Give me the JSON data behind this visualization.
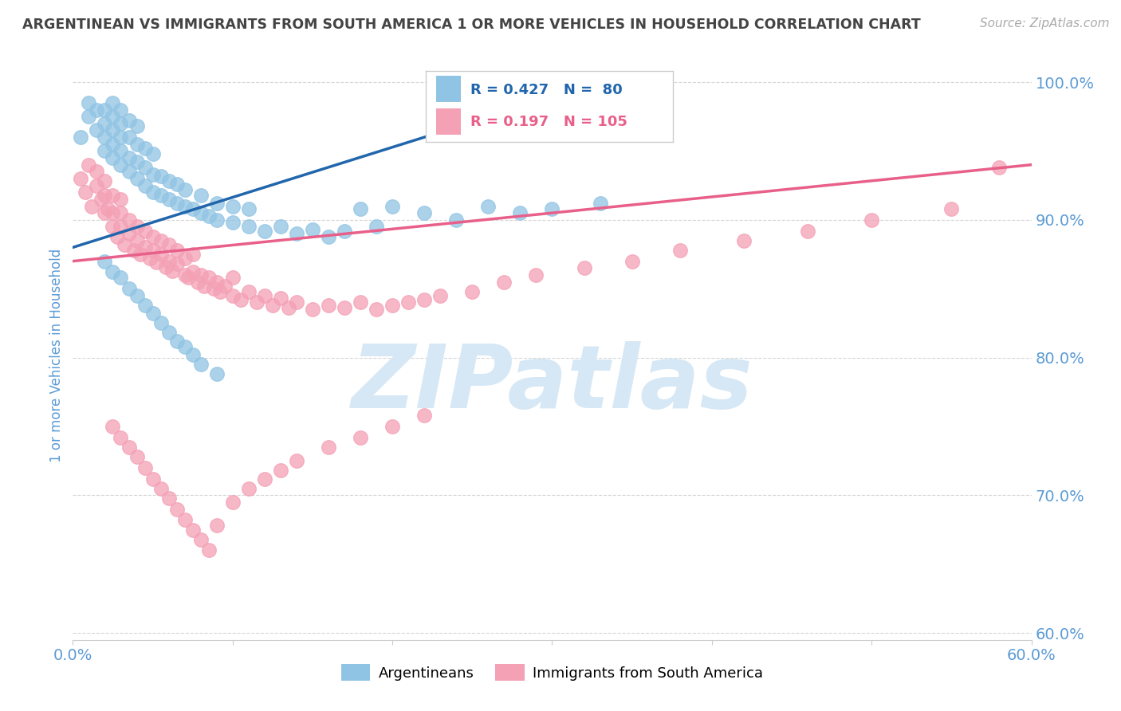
{
  "title": "ARGENTINEAN VS IMMIGRANTS FROM SOUTH AMERICA 1 OR MORE VEHICLES IN HOUSEHOLD CORRELATION CHART",
  "source": "Source: ZipAtlas.com",
  "ylabel": "1 or more Vehicles in Household",
  "xlim": [
    0.0,
    0.6
  ],
  "ylim": [
    0.595,
    1.008
  ],
  "yticks": [
    0.6,
    0.7,
    0.8,
    0.9,
    1.0
  ],
  "ytick_labels": [
    "60.0%",
    "70.0%",
    "80.0%",
    "90.0%",
    "100.0%"
  ],
  "blue_color": "#90c4e4",
  "pink_color": "#f4a0b5",
  "blue_line_color": "#2166ac",
  "pink_line_color": "#e8608a",
  "tick_label_color": "#5b9bd5",
  "axis_label_color": "#5b9bd5",
  "watermark_color": "#d6e8f5",
  "blue_scatter_x": [
    0.005,
    0.01,
    0.01,
    0.015,
    0.015,
    0.02,
    0.02,
    0.02,
    0.02,
    0.025,
    0.025,
    0.025,
    0.025,
    0.025,
    0.03,
    0.03,
    0.03,
    0.03,
    0.03,
    0.035,
    0.035,
    0.035,
    0.035,
    0.04,
    0.04,
    0.04,
    0.04,
    0.045,
    0.045,
    0.045,
    0.05,
    0.05,
    0.05,
    0.055,
    0.055,
    0.06,
    0.06,
    0.065,
    0.065,
    0.07,
    0.07,
    0.075,
    0.08,
    0.08,
    0.085,
    0.09,
    0.09,
    0.1,
    0.1,
    0.11,
    0.11,
    0.12,
    0.13,
    0.14,
    0.15,
    0.16,
    0.17,
    0.18,
    0.19,
    0.2,
    0.22,
    0.24,
    0.26,
    0.28,
    0.3,
    0.33,
    0.02,
    0.025,
    0.03,
    0.035,
    0.04,
    0.045,
    0.05,
    0.055,
    0.06,
    0.065,
    0.07,
    0.075,
    0.08,
    0.09
  ],
  "blue_scatter_y": [
    0.96,
    0.975,
    0.985,
    0.965,
    0.98,
    0.95,
    0.96,
    0.97,
    0.98,
    0.945,
    0.955,
    0.965,
    0.975,
    0.985,
    0.94,
    0.95,
    0.96,
    0.97,
    0.98,
    0.935,
    0.945,
    0.96,
    0.972,
    0.93,
    0.942,
    0.955,
    0.968,
    0.925,
    0.938,
    0.952,
    0.92,
    0.933,
    0.948,
    0.918,
    0.932,
    0.915,
    0.928,
    0.912,
    0.926,
    0.91,
    0.922,
    0.908,
    0.905,
    0.918,
    0.903,
    0.9,
    0.912,
    0.898,
    0.91,
    0.895,
    0.908,
    0.892,
    0.895,
    0.89,
    0.893,
    0.888,
    0.892,
    0.908,
    0.895,
    0.91,
    0.905,
    0.9,
    0.91,
    0.905,
    0.908,
    0.912,
    0.87,
    0.862,
    0.858,
    0.85,
    0.845,
    0.838,
    0.832,
    0.825,
    0.818,
    0.812,
    0.808,
    0.802,
    0.795,
    0.788
  ],
  "pink_scatter_x": [
    0.005,
    0.008,
    0.01,
    0.012,
    0.015,
    0.015,
    0.018,
    0.02,
    0.02,
    0.02,
    0.022,
    0.025,
    0.025,
    0.025,
    0.028,
    0.03,
    0.03,
    0.03,
    0.032,
    0.035,
    0.035,
    0.038,
    0.04,
    0.04,
    0.042,
    0.045,
    0.045,
    0.048,
    0.05,
    0.05,
    0.052,
    0.055,
    0.055,
    0.058,
    0.06,
    0.06,
    0.062,
    0.065,
    0.065,
    0.07,
    0.07,
    0.072,
    0.075,
    0.075,
    0.078,
    0.08,
    0.082,
    0.085,
    0.088,
    0.09,
    0.092,
    0.095,
    0.1,
    0.1,
    0.105,
    0.11,
    0.115,
    0.12,
    0.125,
    0.13,
    0.135,
    0.14,
    0.15,
    0.16,
    0.17,
    0.18,
    0.19,
    0.2,
    0.21,
    0.22,
    0.23,
    0.25,
    0.27,
    0.29,
    0.32,
    0.35,
    0.38,
    0.42,
    0.46,
    0.5,
    0.55,
    0.58,
    0.025,
    0.03,
    0.035,
    0.04,
    0.045,
    0.05,
    0.055,
    0.06,
    0.065,
    0.07,
    0.075,
    0.08,
    0.085,
    0.09,
    0.1,
    0.11,
    0.12,
    0.13,
    0.14,
    0.16,
    0.18,
    0.2,
    0.22
  ],
  "pink_scatter_y": [
    0.93,
    0.92,
    0.94,
    0.91,
    0.925,
    0.935,
    0.915,
    0.905,
    0.918,
    0.928,
    0.908,
    0.895,
    0.905,
    0.918,
    0.888,
    0.895,
    0.905,
    0.915,
    0.882,
    0.89,
    0.9,
    0.878,
    0.885,
    0.895,
    0.875,
    0.88,
    0.892,
    0.872,
    0.878,
    0.888,
    0.869,
    0.875,
    0.885,
    0.866,
    0.87,
    0.882,
    0.863,
    0.868,
    0.878,
    0.86,
    0.872,
    0.858,
    0.862,
    0.875,
    0.855,
    0.86,
    0.852,
    0.858,
    0.85,
    0.855,
    0.848,
    0.852,
    0.845,
    0.858,
    0.842,
    0.848,
    0.84,
    0.845,
    0.838,
    0.843,
    0.836,
    0.84,
    0.835,
    0.838,
    0.836,
    0.84,
    0.835,
    0.838,
    0.84,
    0.842,
    0.845,
    0.848,
    0.855,
    0.86,
    0.865,
    0.87,
    0.878,
    0.885,
    0.892,
    0.9,
    0.908,
    0.938,
    0.75,
    0.742,
    0.735,
    0.728,
    0.72,
    0.712,
    0.705,
    0.698,
    0.69,
    0.682,
    0.675,
    0.668,
    0.66,
    0.678,
    0.695,
    0.705,
    0.712,
    0.718,
    0.725,
    0.735,
    0.742,
    0.75,
    0.758
  ],
  "blue_trend_x": [
    0.0,
    0.33
  ],
  "blue_trend_y": [
    0.88,
    1.0
  ],
  "pink_trend_x": [
    0.0,
    0.6
  ],
  "pink_trend_y": [
    0.87,
    0.94
  ]
}
